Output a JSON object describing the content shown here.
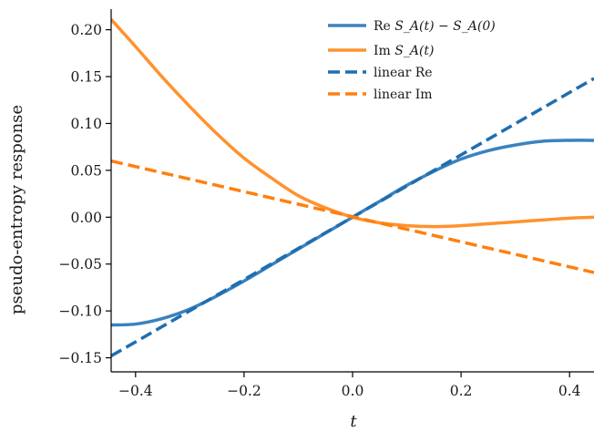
{
  "chart_data": {
    "type": "line",
    "xlabel": "t",
    "ylabel": "pseudo-entropy response",
    "xlim": [
      -0.445,
      0.445
    ],
    "ylim": [
      -0.165,
      0.222
    ],
    "x_ticks": [
      -0.4,
      -0.2,
      0.0,
      0.2,
      0.4
    ],
    "x_tick_labels": [
      "−0.4",
      "−0.2",
      "0.0",
      "0.2",
      "0.4"
    ],
    "y_ticks": [
      -0.15,
      -0.1,
      -0.05,
      0.0,
      0.05,
      0.1,
      0.15,
      0.2
    ],
    "y_tick_labels": [
      "−0.15",
      "−0.10",
      "−0.05",
      "0.00",
      "0.05",
      "0.10",
      "0.15",
      "0.20"
    ],
    "grid": false,
    "legend_position": "top-right",
    "series": [
      {
        "name": "Re S_A(t) − S_A(0)",
        "color": "#3a82bf",
        "style": "solid",
        "x": [
          -0.445,
          -0.4,
          -0.35,
          -0.3,
          -0.25,
          -0.2,
          -0.15,
          -0.1,
          -0.05,
          0.0,
          0.05,
          0.1,
          0.15,
          0.2,
          0.25,
          0.3,
          0.35,
          0.4,
          0.445
        ],
        "y": [
          -0.115,
          -0.114,
          -0.108,
          -0.098,
          -0.084,
          -0.068,
          -0.051,
          -0.034,
          -0.017,
          0.0,
          0.017,
          0.034,
          0.049,
          0.062,
          0.071,
          0.077,
          0.081,
          0.082,
          0.082
        ]
      },
      {
        "name": "Im S_A(t)",
        "color": "#ff922f",
        "style": "solid",
        "x": [
          -0.445,
          -0.4,
          -0.35,
          -0.3,
          -0.25,
          -0.2,
          -0.15,
          -0.1,
          -0.05,
          0.0,
          0.05,
          0.1,
          0.15,
          0.2,
          0.25,
          0.3,
          0.35,
          0.4,
          0.445
        ],
        "y": [
          0.211,
          0.182,
          0.149,
          0.118,
          0.089,
          0.063,
          0.042,
          0.023,
          0.01,
          0.0,
          -0.006,
          -0.009,
          -0.01,
          -0.009,
          -0.007,
          -0.005,
          -0.003,
          -0.001,
          0.0
        ]
      },
      {
        "name": "linear Re",
        "color": "#1f6eaf",
        "style": "dashed",
        "x": [
          -0.445,
          0.445
        ],
        "y": [
          -0.148,
          0.148
        ]
      },
      {
        "name": "linear Im",
        "color": "#ff7f0e",
        "style": "dashed",
        "x": [
          -0.445,
          0.445
        ],
        "y": [
          0.06,
          -0.059
        ]
      }
    ]
  },
  "legend": {
    "re_prefix": "Re ",
    "re_math": "S_A(t) − S_A(0)",
    "im_prefix": "Im ",
    "im_math": "S_A(t)",
    "linear_re": "linear Re",
    "linear_im": "linear Im"
  }
}
